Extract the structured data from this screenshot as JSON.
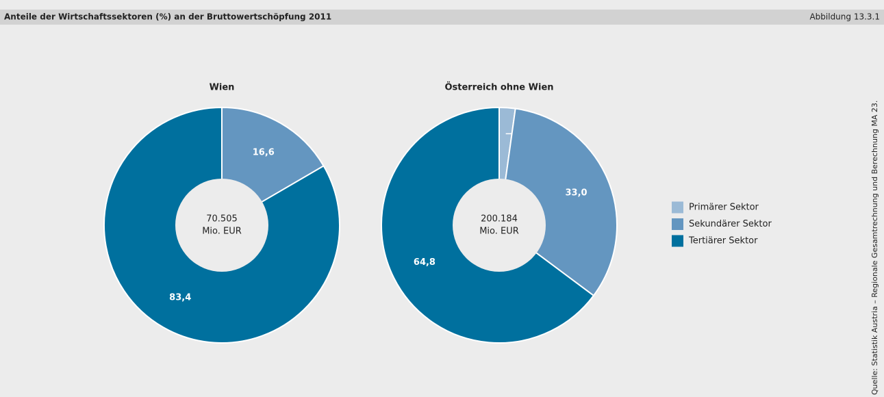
{
  "header": {
    "title": "Anteile der Wirtschaftssektoren (%) an der Bruttowertschöpfung 2011",
    "figure": "Abbildung 13.3.1"
  },
  "source": "Quelle: Statistik Austria – Regionale Gesamtrechnung und Berechnung MA 23.",
  "chart_data": [
    {
      "type": "pie",
      "donut": true,
      "title": "Wien",
      "center_value": "70.505",
      "center_unit": "Mio. EUR",
      "categories": [
        "Primärer Sektor",
        "Sekundärer Sektor",
        "Tertiärer Sektor"
      ],
      "colors": [
        "#9bbad6",
        "#6496c0",
        "#00709e"
      ],
      "values": [
        0,
        16.6,
        83.4
      ],
      "value_labels": [
        null,
        "16,6",
        "83,4"
      ]
    },
    {
      "type": "pie",
      "donut": true,
      "title": "Österreich ohne Wien",
      "center_value": "200.184",
      "center_unit": "Mio. EUR",
      "categories": [
        "Primärer Sektor",
        "Sekundärer Sektor",
        "Tertiärer Sektor"
      ],
      "colors": [
        "#9bbad6",
        "#6496c0",
        "#00709e"
      ],
      "values": [
        2.2,
        33.0,
        64.8
      ],
      "value_labels": [
        "2,2",
        "33,0",
        "64,8"
      ]
    }
  ]
}
